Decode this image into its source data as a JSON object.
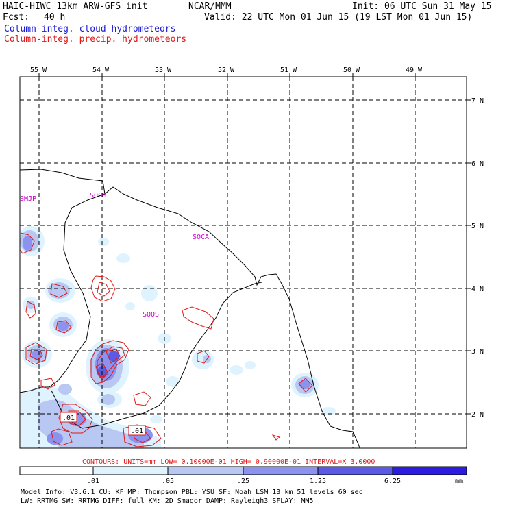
{
  "header": {
    "model": "HAIC-HIWC 13km ARW-GFS init",
    "org": "NCAR/MMM",
    "init": "Init: 06 UTC Sun 31 May 15",
    "fcst_label": "Fcst:",
    "fcst_value": "40 h",
    "valid": "Valid: 22 UTC Mon 01 Jun 15 (19 LST Mon 01 Jun 15)",
    "field1": "Column-integ. cloud hydrometeors",
    "field2": "Column-integ. precip. hydrometeors"
  },
  "colors": {
    "field1": "#1a1adb",
    "field2": "#e01818",
    "station": "#cc00cc",
    "shade_levels": [
      "#ffffff",
      "#dff3ff",
      "#b8c8f2",
      "#8c93ee",
      "#5a5ae4",
      "#2b1de0"
    ]
  },
  "map": {
    "lon_labels": [
      "55 W",
      "54 W",
      "53 W",
      "52 W",
      "51 W",
      "50 W",
      "49 W"
    ],
    "lat_labels": [
      "7 N",
      "6 N",
      "5 N",
      "4 N",
      "3 N",
      "2 N"
    ],
    "stations": [
      "SMJP",
      "SOCM",
      "SOCA",
      "SOOS"
    ],
    "box_labels": [
      ".01",
      ".01"
    ]
  },
  "legend": {
    "contours_note": "CONTOURS:  UNITS=mm  LOW= 0.10000E-01  HIGH= 0.90000E-01  INTERVAL=X  3.0000",
    "thresholds": [
      ".01",
      ".05",
      ".25",
      "1.25",
      "6.25"
    ],
    "units": "mm"
  },
  "footer": {
    "line1": "Model Info: V3.6.1     CU: KF      MP: Thompson     PBL: YSU       SF: Noah LSM     13 km    51 levels   60 sec",
    "line2": "              LW: RRTMG    SW: RRTMG   DIFF: full    KM: 2D Smagor  DAMP: Rayleigh3    SFLAY: MM5"
  }
}
